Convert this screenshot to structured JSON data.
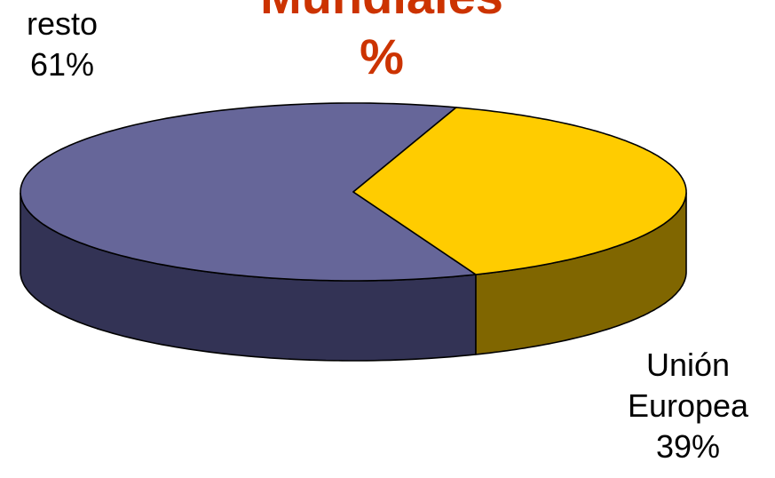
{
  "chart_data": {
    "type": "pie",
    "title_lines": [
      "Mundiales",
      "%"
    ],
    "slices": [
      {
        "label_lines": [
          "resto"
        ],
        "value_text": "61%",
        "value": 61,
        "color_top": "#666699",
        "color_side": "#333355"
      },
      {
        "label_lines": [
          "Unión",
          "Europea"
        ],
        "value_text": "39%",
        "value": 39,
        "color_top": "#ffcc00",
        "color_side": "#806600"
      }
    ],
    "title_color": "#cc3300",
    "style": "3d-exploded-tilt"
  }
}
